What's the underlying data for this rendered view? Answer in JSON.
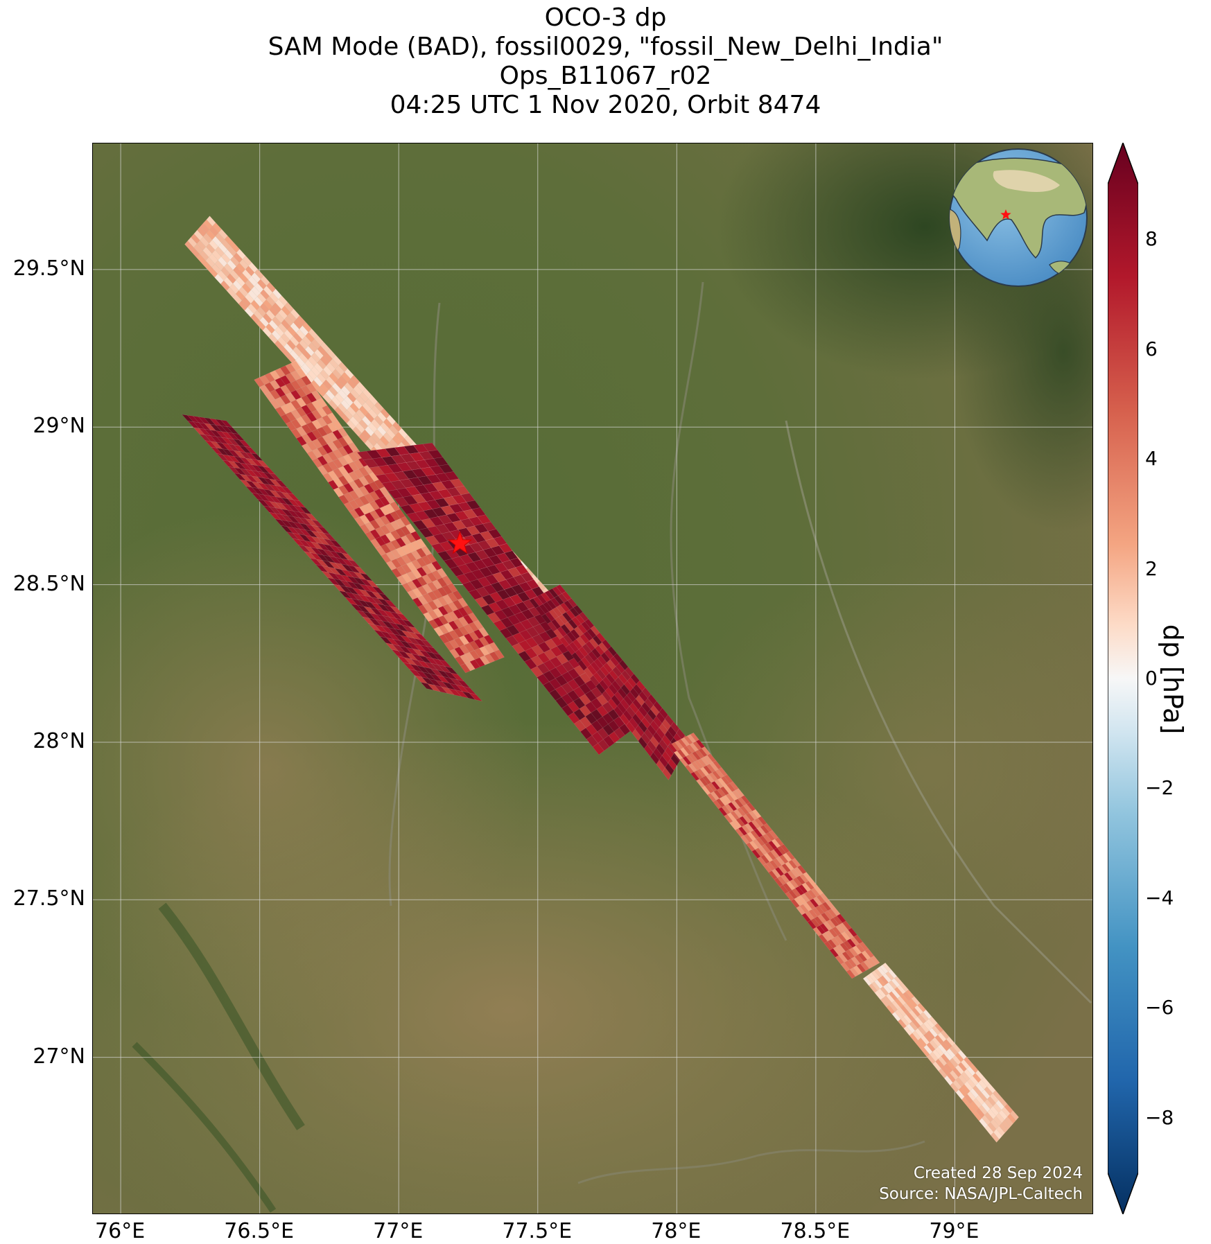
{
  "title": {
    "line1": "OCO-3 dp",
    "line2": "SAM Mode (BAD), fossil0029, \"fossil_New_Delhi_India\"",
    "line3": "Ops_B11067_r02",
    "line4": "04:25 UTC 1 Nov 2020, Orbit 8474"
  },
  "map": {
    "lon_range": [
      75.9,
      79.5
    ],
    "lat_range": [
      26.5,
      29.9
    ],
    "lon_ticks": [
      {
        "value": 76.0,
        "label": "76°E"
      },
      {
        "value": 76.5,
        "label": "76.5°E"
      },
      {
        "value": 77.0,
        "label": "77°E"
      },
      {
        "value": 77.5,
        "label": "77.5°E"
      },
      {
        "value": 78.0,
        "label": "78°E"
      },
      {
        "value": 78.5,
        "label": "78.5°E"
      },
      {
        "value": 79.0,
        "label": "79°E"
      }
    ],
    "lat_ticks": [
      {
        "value": 29.5,
        "label": "29.5°N"
      },
      {
        "value": 29.0,
        "label": "29°N"
      },
      {
        "value": 28.5,
        "label": "28.5°N"
      },
      {
        "value": 28.0,
        "label": "28°N"
      },
      {
        "value": 27.5,
        "label": "27.5°N"
      },
      {
        "value": 27.0,
        "label": "27°N"
      }
    ],
    "gridlines": true,
    "basemap": "satellite imagery",
    "target_marker": {
      "lon": 77.22,
      "lat": 28.63,
      "symbol": "red-star"
    },
    "inset_globe": {
      "position": "top-right",
      "center": "Asia",
      "marker": "red-star"
    },
    "colors": {
      "land_green": "#4f6a33",
      "land_tan": "#8a7650",
      "himalaya_dark": "#2e4a24"
    }
  },
  "swaths": [
    {
      "label": "swath-1",
      "level": "light",
      "corners": [
        [
          76.23,
          29.58
        ],
        [
          76.32,
          29.67
        ],
        [
          77.55,
          28.47
        ],
        [
          77.46,
          28.38
        ]
      ]
    },
    {
      "label": "swath-2",
      "level": "medium",
      "corners": [
        [
          76.48,
          29.15
        ],
        [
          76.63,
          29.21
        ],
        [
          77.38,
          28.27
        ],
        [
          77.24,
          28.22
        ]
      ]
    },
    {
      "label": "swath-3",
      "level": "dark",
      "corners": [
        [
          76.22,
          29.04
        ],
        [
          76.38,
          29.02
        ],
        [
          77.3,
          28.13
        ],
        [
          77.1,
          28.17
        ]
      ]
    },
    {
      "label": "swath-4",
      "level": "dark",
      "corners": [
        [
          76.85,
          28.92
        ],
        [
          77.12,
          28.95
        ],
        [
          77.87,
          28.06
        ],
        [
          77.72,
          27.96
        ]
      ]
    },
    {
      "label": "swath-5",
      "level": "dark",
      "corners": [
        [
          77.47,
          28.45
        ],
        [
          77.58,
          28.5
        ],
        [
          78.05,
          28.0
        ],
        [
          77.97,
          27.88
        ]
      ]
    },
    {
      "label": "swath-6",
      "level": "medium",
      "corners": [
        [
          77.97,
          27.99
        ],
        [
          78.06,
          28.03
        ],
        [
          78.73,
          27.3
        ],
        [
          78.63,
          27.25
        ]
      ]
    },
    {
      "label": "swath-7",
      "level": "light",
      "corners": [
        [
          78.67,
          27.25
        ],
        [
          78.75,
          27.3
        ],
        [
          79.23,
          26.81
        ],
        [
          79.15,
          26.73
        ]
      ]
    }
  ],
  "chart_data": {
    "type": "heatmap",
    "title": "OCO-3 dp",
    "variable": "dp",
    "units": "hPa",
    "colorbar": {
      "label": "dp [hPa]",
      "range": [
        -9,
        9
      ],
      "extend": "both",
      "colormap": "RdBu_r",
      "ticks": [
        {
          "value": 8,
          "label": "8"
        },
        {
          "value": 6,
          "label": "6"
        },
        {
          "value": 4,
          "label": "4"
        },
        {
          "value": 2,
          "label": "2"
        },
        {
          "value": 0,
          "label": "0"
        },
        {
          "value": -2,
          "label": "−2"
        },
        {
          "value": -4,
          "label": "−4"
        },
        {
          "value": -6,
          "label": "−6"
        },
        {
          "value": -8,
          "label": "−8"
        }
      ]
    },
    "approx_values": {
      "northwest_swath": "1 to 4 hPa",
      "central_overlap": "5 to 9 hPa",
      "southeast_tail": "0 to 3 hPa"
    }
  },
  "credits": {
    "created": "Created 28 Sep 2024",
    "source": "Source: NASA/JPL-Caltech"
  }
}
